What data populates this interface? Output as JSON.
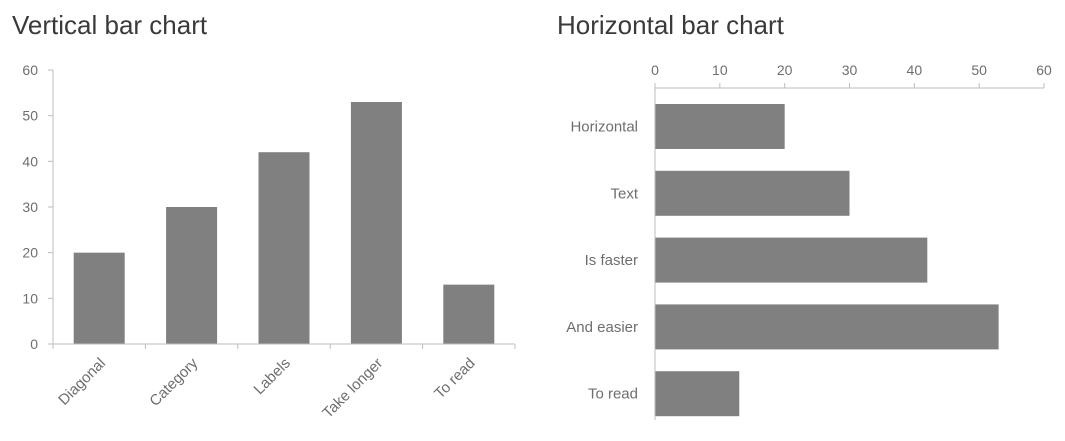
{
  "chart_data": [
    {
      "type": "bar",
      "orientation": "vertical",
      "title": "Vertical bar chart",
      "categories": [
        "Diagonal",
        "Category",
        "Labels",
        "Take longer",
        "To read"
      ],
      "values": [
        20,
        30,
        42,
        53,
        13
      ],
      "ylim": [
        0,
        60
      ],
      "yticks": [
        0,
        10,
        20,
        30,
        40,
        50,
        60
      ],
      "tick_labels": [
        "0",
        "10",
        "20",
        "30",
        "40",
        "50",
        "60"
      ],
      "bar_color": "#808080",
      "grid": false
    },
    {
      "type": "bar",
      "orientation": "horizontal",
      "title": "Horizontal bar chart",
      "categories": [
        "Horizontal",
        "Text",
        "Is faster",
        "And easier",
        "To read"
      ],
      "values": [
        20,
        30,
        42,
        53,
        13
      ],
      "xlim": [
        0,
        60
      ],
      "xticks": [
        0,
        10,
        20,
        30,
        40,
        50,
        60
      ],
      "tick_labels": [
        "0",
        "10",
        "20",
        "30",
        "40",
        "50",
        "60"
      ],
      "bar_color": "#808080",
      "grid": false
    }
  ]
}
